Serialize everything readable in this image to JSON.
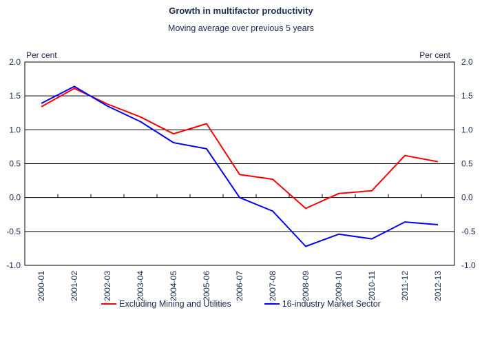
{
  "colors": {
    "series1": "#ff0000",
    "series2": "#0000ff",
    "text": "#1a2a52",
    "grid": "#000000"
  },
  "chart_data": {
    "type": "line",
    "title": "Growth in multifactor productivity",
    "subtitle": "Moving average over previous 5 years",
    "ylabel_left": "Per cent",
    "ylabel_right": "Per cent",
    "ylim": [
      -1.0,
      2.0
    ],
    "yticks": [
      "2.0",
      "1.5",
      "1.0",
      "0.5",
      "0.0",
      "-0.5",
      "-1.0"
    ],
    "grid": true,
    "legend_position": "bottom",
    "categories": [
      "2000-01",
      "2001-02",
      "2002-03",
      "2003-04",
      "2004-05",
      "2005-06",
      "2006-07",
      "2007-08",
      "2008-09",
      "2009-10",
      "2010-11",
      "2011-12",
      "2012-13"
    ],
    "series": [
      {
        "name": "Excluding Mining and Utilities",
        "color": "#ff0000",
        "values": [
          1.34,
          1.61,
          1.38,
          1.19,
          0.94,
          1.09,
          0.34,
          0.27,
          -0.16,
          0.06,
          0.1,
          0.62,
          0.53
        ]
      },
      {
        "name": "16-industry Market Sector",
        "color": "#0000ff",
        "values": [
          1.39,
          1.64,
          1.35,
          1.12,
          0.81,
          0.72,
          0.0,
          -0.2,
          -0.72,
          -0.54,
          -0.61,
          -0.36,
          -0.4
        ]
      }
    ]
  }
}
